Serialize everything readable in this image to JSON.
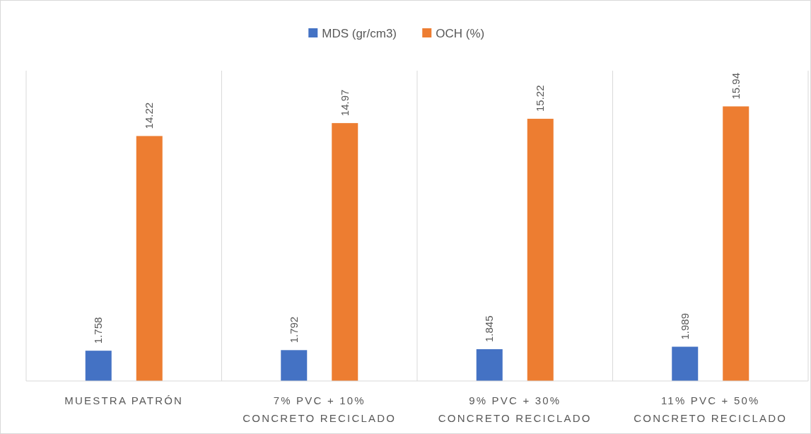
{
  "chart_data": {
    "type": "bar",
    "categories": [
      "MUESTRA PATRÓN",
      "7% PVC + 10% CONCRETO RECICLADO",
      "9% PVC + 30% CONCRETO RECICLADO",
      "11% PVC + 50% CONCRETO RECICLADO"
    ],
    "series": [
      {
        "name": "MDS (gr/cm3)",
        "color": "#4472c4",
        "values": [
          1.758,
          1.792,
          1.845,
          1.989
        ]
      },
      {
        "name": "OCH (%)",
        "color": "#ed7d31",
        "values": [
          14.22,
          14.97,
          15.22,
          15.94
        ]
      }
    ],
    "data_labels": true,
    "legend": "top",
    "grid": "x"
  }
}
